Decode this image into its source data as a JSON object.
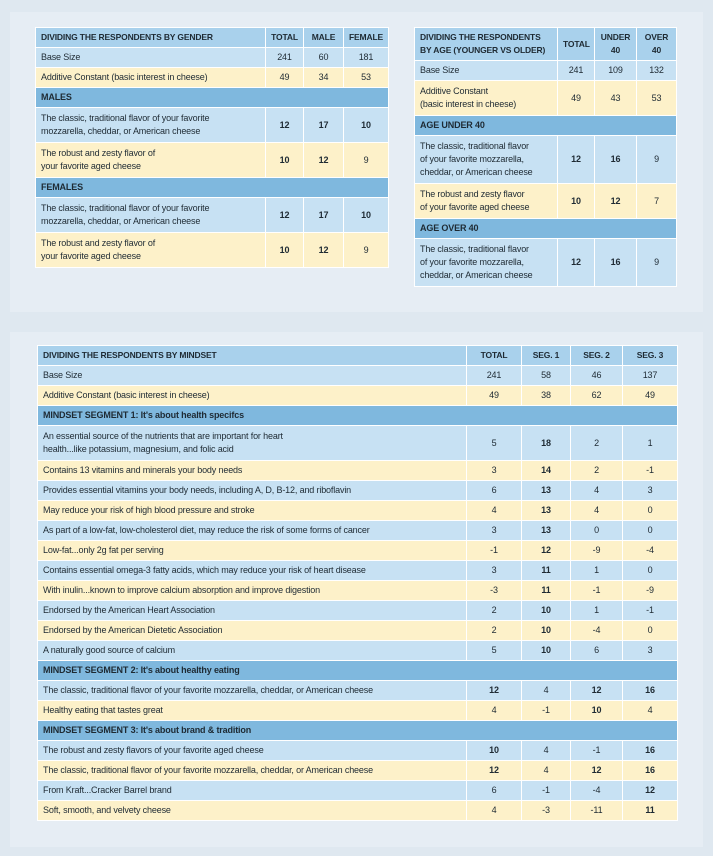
{
  "gender_table": {
    "title": "DIVIDING THE RESPONDENTS BY GENDER",
    "columns": [
      "TOTAL",
      "MALE",
      "FEMALE"
    ],
    "rows": [
      {
        "label": "Base Size",
        "values": [
          241,
          60,
          181
        ]
      },
      {
        "label": "Additive Constant (basic interest in cheese)",
        "values": [
          49,
          34,
          53
        ]
      },
      {
        "section": "MALES"
      },
      {
        "label": [
          "The classic, traditional flavor of your favorite",
          "mozzarella, cheddar, or American cheese"
        ],
        "values": [
          12,
          17,
          10
        ],
        "bold": [
          true,
          true,
          true
        ]
      },
      {
        "label": [
          "The robust and zesty flavor of",
          "your favorite aged cheese"
        ],
        "values": [
          10,
          12,
          9
        ],
        "bold": [
          true,
          true,
          false
        ]
      },
      {
        "section": "FEMALES"
      },
      {
        "label": [
          "The classic, traditional flavor of your favorite",
          "mozzarella, cheddar, or American cheese"
        ],
        "values": [
          12,
          17,
          10
        ],
        "bold": [
          true,
          true,
          true
        ]
      },
      {
        "label": [
          "The robust and zesty flavor of",
          "your favorite aged cheese"
        ],
        "values": [
          10,
          12,
          9
        ],
        "bold": [
          true,
          true,
          false
        ]
      }
    ]
  },
  "age_table": {
    "title": [
      "DIVIDING THE RESPONDENTS",
      "BY AGE (YOUNGER VS OLDER)"
    ],
    "columns": [
      "TOTAL",
      [
        "UNDER",
        "40"
      ],
      [
        "OVER",
        "40"
      ]
    ],
    "rows": [
      {
        "label": "Base Size",
        "values": [
          241,
          109,
          132
        ]
      },
      {
        "label": [
          "Additive Constant",
          "(basic interest in cheese)"
        ],
        "values": [
          49,
          43,
          53
        ]
      },
      {
        "section": "AGE UNDER 40"
      },
      {
        "label": [
          "The classic, traditional flavor",
          "of your favorite mozzarella,",
          "cheddar, or American cheese"
        ],
        "values": [
          12,
          16,
          9
        ],
        "bold": [
          true,
          true,
          false
        ]
      },
      {
        "label": [
          "The robust and zesty flavor",
          "of your favorite aged cheese"
        ],
        "values": [
          10,
          12,
          7
        ],
        "bold": [
          true,
          true,
          false
        ]
      },
      {
        "section": "AGE OVER 40"
      },
      {
        "label": [
          "The classic, traditional flavor",
          "of your favorite mozzarella,",
          "cheddar, or American cheese"
        ],
        "values": [
          12,
          16,
          9
        ],
        "bold": [
          true,
          true,
          false
        ]
      }
    ]
  },
  "mindset_table": {
    "title": "DIVIDING THE RESPONDENTS BY MINDSET",
    "columns": [
      "TOTAL",
      "SEG. 1",
      "SEG. 2",
      "SEG. 3"
    ],
    "rows": [
      {
        "label": "Base Size",
        "values": [
          241,
          58,
          46,
          137
        ]
      },
      {
        "label": "Additive Constant (basic interest in cheese)",
        "values": [
          49,
          38,
          62,
          49
        ]
      },
      {
        "section": "MINDSET SEGMENT 1: It's about health specifcs"
      },
      {
        "label": [
          "An essential source of the nutrients that are important for heart",
          "health...like potassium, magnesium, and folic acid"
        ],
        "values": [
          5,
          18,
          2,
          1
        ],
        "bold": [
          false,
          true,
          false,
          false
        ]
      },
      {
        "label": "Contains 13 vitamins and minerals your body needs",
        "values": [
          3,
          14,
          2,
          -1
        ],
        "bold": [
          false,
          true,
          false,
          false
        ]
      },
      {
        "label": "Provides essential vitamins your body needs, including A, D, B-12, and riboflavin",
        "values": [
          6,
          13,
          4,
          3
        ],
        "bold": [
          false,
          true,
          false,
          false
        ]
      },
      {
        "label": "May reduce your risk of high blood pressure and stroke",
        "values": [
          4,
          13,
          4,
          0
        ],
        "bold": [
          false,
          true,
          false,
          false
        ]
      },
      {
        "label": "As part of a low-fat, low-cholesterol diet, may reduce the risk of some forms of cancer",
        "values": [
          3,
          13,
          0,
          0
        ],
        "bold": [
          false,
          true,
          false,
          false
        ]
      },
      {
        "label": "Low-fat...only 2g fat per serving",
        "values": [
          -1,
          12,
          -9,
          -4
        ],
        "bold": [
          false,
          true,
          false,
          false
        ]
      },
      {
        "label": "Contains essential omega-3 fatty acids, which may reduce your risk of heart disease",
        "values": [
          3,
          11,
          1,
          0
        ],
        "bold": [
          false,
          true,
          false,
          false
        ]
      },
      {
        "label": "With inulin...known to improve calcium absorption and improve digestion",
        "values": [
          -3,
          11,
          -1,
          -9
        ],
        "bold": [
          false,
          true,
          false,
          false
        ]
      },
      {
        "label": "Endorsed by the American Heart Association",
        "values": [
          2,
          10,
          1,
          -1
        ],
        "bold": [
          false,
          true,
          false,
          false
        ]
      },
      {
        "label": "Endorsed by the American Dietetic Association",
        "values": [
          2,
          10,
          -4,
          0
        ],
        "bold": [
          false,
          true,
          false,
          false
        ]
      },
      {
        "label": "A naturally good source of calcium",
        "values": [
          5,
          10,
          6,
          3
        ],
        "bold": [
          false,
          true,
          false,
          false
        ]
      },
      {
        "section": "MINDSET SEGMENT 2: It's about healthy eating"
      },
      {
        "label": "The classic, traditional flavor of your favorite mozzarella, cheddar, or American cheese",
        "values": [
          12,
          4,
          12,
          16
        ],
        "bold": [
          true,
          false,
          true,
          true
        ]
      },
      {
        "label": "Healthy eating that tastes great",
        "values": [
          4,
          -1,
          10,
          4
        ],
        "bold": [
          false,
          false,
          true,
          false
        ]
      },
      {
        "section": "MINDSET SEGMENT 3: It's about brand & tradition"
      },
      {
        "label": "The robust and zesty flavors of your favorite aged cheese",
        "values": [
          10,
          4,
          -1,
          16
        ],
        "bold": [
          true,
          false,
          false,
          true
        ]
      },
      {
        "label": "The classic, traditional flavor of your favorite mozzarella, cheddar, or American cheese",
        "values": [
          12,
          4,
          12,
          16
        ],
        "bold": [
          true,
          false,
          true,
          true
        ]
      },
      {
        "label": "From Kraft...Cracker Barrel brand",
        "values": [
          6,
          -1,
          -4,
          12
        ],
        "bold": [
          false,
          false,
          false,
          true
        ]
      },
      {
        "label": "Soft, smooth, and velvety cheese",
        "values": [
          4,
          -3,
          -11,
          11
        ],
        "bold": [
          false,
          false,
          false,
          true
        ]
      }
    ]
  }
}
